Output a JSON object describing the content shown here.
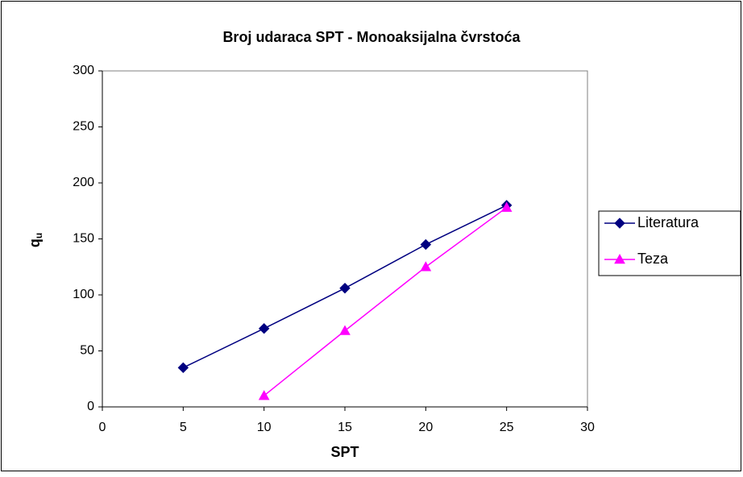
{
  "chart_data": {
    "type": "line",
    "title": "Broj udaraca SPT - Monoaksijalna čvrstoća",
    "xlabel": "SPT",
    "ylabel": "q",
    "ylabel_subscript": "u",
    "xlim": [
      0,
      30
    ],
    "xticks": [
      0,
      5,
      10,
      15,
      20,
      25,
      30
    ],
    "ylim": [
      0,
      300
    ],
    "yticks": [
      0,
      50,
      100,
      150,
      200,
      250,
      300
    ],
    "grid": false,
    "legend": "right",
    "series": [
      {
        "name": "Literatura",
        "color": "#000080",
        "marker": "diamond",
        "x": [
          5,
          10,
          15,
          20,
          25
        ],
        "values": [
          35,
          70,
          106,
          145,
          180
        ]
      },
      {
        "name": "Teza",
        "color": "#ff00ff",
        "marker": "triangle",
        "x": [
          10,
          15,
          20,
          25
        ],
        "values": [
          10,
          68,
          125,
          178
        ]
      }
    ]
  }
}
